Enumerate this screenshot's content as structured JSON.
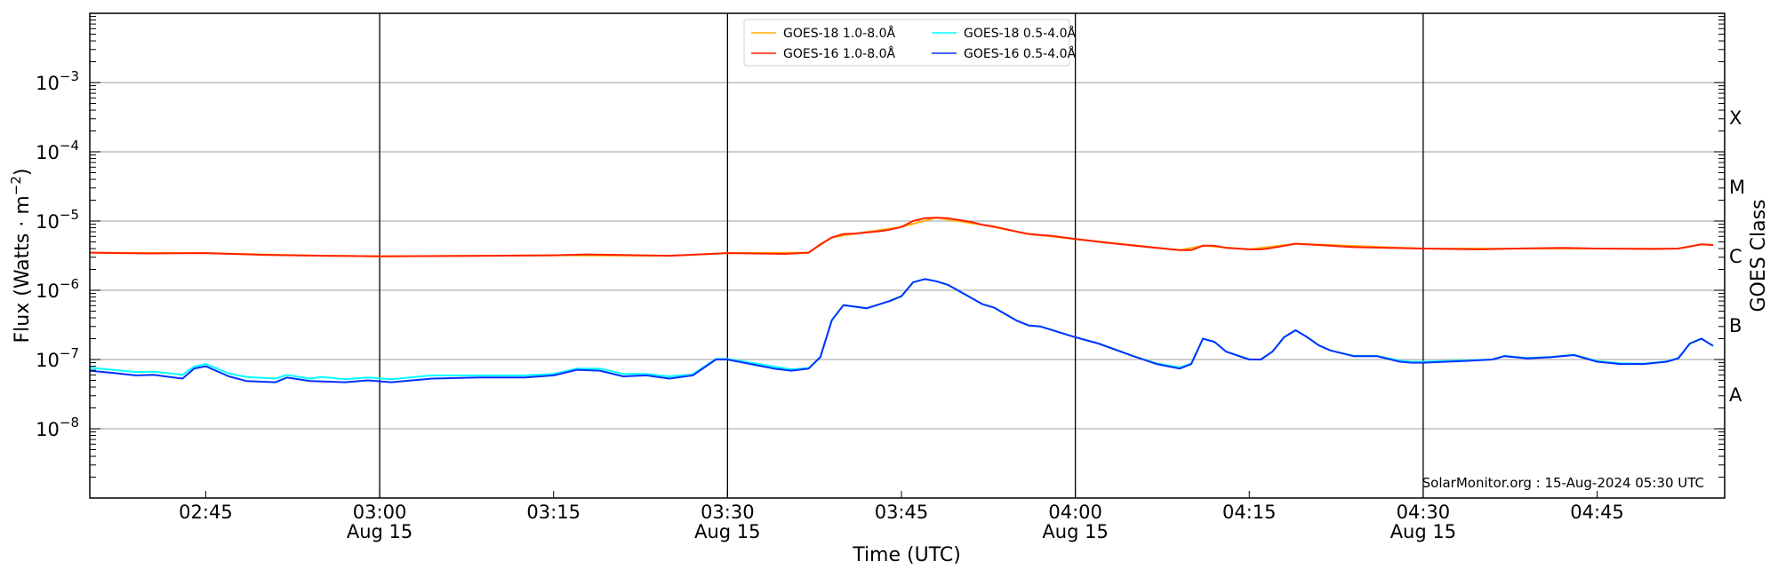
{
  "chart_data": {
    "type": "line",
    "title": "",
    "xlabel": "Time (UTC)",
    "ylabel": "Flux (Watts · m",
    "ylabel_exp": "−2",
    "ylabel_close": ")",
    "yscale": "log",
    "ylim": [
      1e-09,
      0.01
    ],
    "xlim": [
      "02:35",
      "04:56"
    ],
    "grid": "horizontal at decades",
    "legend_placement": "top-center",
    "y_ticks": [
      {
        "value": -3,
        "base": "10",
        "exp": "−3"
      },
      {
        "value": -4,
        "base": "10",
        "exp": "−4"
      },
      {
        "value": -5,
        "base": "10",
        "exp": "−5"
      },
      {
        "value": -6,
        "base": "10",
        "exp": "−6"
      },
      {
        "value": -7,
        "base": "10",
        "exp": "−7"
      },
      {
        "value": -8,
        "base": "10",
        "exp": "−8"
      }
    ],
    "x_ticks": [
      {
        "time": "02:45",
        "label": "02:45",
        "date": ""
      },
      {
        "time": "03:00",
        "label": "03:00",
        "date": "Aug 15"
      },
      {
        "time": "03:15",
        "label": "03:15",
        "date": ""
      },
      {
        "time": "03:30",
        "label": "03:30",
        "date": "Aug 15"
      },
      {
        "time": "03:45",
        "label": "03:45",
        "date": ""
      },
      {
        "time": "04:00",
        "label": "04:00",
        "date": "Aug 15"
      },
      {
        "time": "04:15",
        "label": "04:15",
        "date": ""
      },
      {
        "time": "04:30",
        "label": "04:30",
        "date": "Aug 15"
      },
      {
        "time": "04:45",
        "label": "04:45",
        "date": ""
      }
    ],
    "vertical_lines": [
      "03:00",
      "03:30",
      "04:00",
      "04:30"
    ],
    "right_axis": {
      "label": "GOES Class",
      "classes": [
        {
          "label": "X",
          "log": -3.5
        },
        {
          "label": "M",
          "log": -4.5
        },
        {
          "label": "C",
          "log": -5.5
        },
        {
          "label": "B",
          "log": -6.5
        },
        {
          "label": "A",
          "log": -7.5
        }
      ]
    },
    "annotation": "SolarMonitor.org : 15-Aug-2024 05:30 UTC",
    "series": [
      {
        "name": "GOES-18 1.0-8.0Å",
        "color": "#ffb000",
        "legend_col": 0,
        "points": [
          [
            "02:35",
            3.5e-06
          ],
          [
            "02:45",
            3.45e-06
          ],
          [
            "02:55",
            3.15e-06
          ],
          [
            "03:00",
            3.1e-06
          ],
          [
            "03:15",
            3.2e-06
          ],
          [
            "03:25",
            3.15e-06
          ],
          [
            "03:30",
            3.45e-06
          ],
          [
            "03:37",
            3.5e-06
          ],
          [
            "03:39",
            5.8e-06
          ],
          [
            "03:41",
            6.6e-06
          ],
          [
            "03:45",
            8.2e-06
          ],
          [
            "03:48",
            1.12e-05
          ],
          [
            "03:52",
            8.8e-06
          ],
          [
            "03:56",
            6.5e-06
          ],
          [
            "04:00",
            5.5e-06
          ],
          [
            "04:09",
            3.8e-06
          ],
          [
            "04:11",
            4.4e-06
          ],
          [
            "04:15",
            3.9e-06
          ],
          [
            "04:19",
            4.7e-06
          ],
          [
            "04:30",
            4e-06
          ],
          [
            "04:45",
            4e-06
          ],
          [
            "04:52",
            4e-06
          ],
          [
            "04:54",
            4.6e-06
          ],
          [
            "04:55",
            4.5e-06
          ]
        ]
      },
      {
        "name": "GOES-18 0.5-4.0Å",
        "color": "#00ffff",
        "legend_col": 1,
        "points": [
          [
            "02:35",
            7.6e-08
          ],
          [
            "02:37",
            7.1e-08
          ],
          [
            "02:39",
            6.6e-08
          ],
          [
            "02:40.5",
            6.7e-08
          ],
          [
            "02:43",
            6e-08
          ],
          [
            "02:44",
            7.9e-08
          ],
          [
            "02:45",
            8.6e-08
          ],
          [
            "02:47",
            6.3e-08
          ],
          [
            "02:48.5",
            5.6e-08
          ],
          [
            "02:51",
            5.3e-08
          ],
          [
            "02:52",
            6e-08
          ],
          [
            "02:54",
            5.3e-08
          ],
          [
            "02:55",
            5.6e-08
          ],
          [
            "02:57",
            5.2e-08
          ],
          [
            "02:59",
            5.5e-08
          ],
          [
            "03:01",
            5.2e-08
          ],
          [
            "03:04.5",
            5.9e-08
          ],
          [
            "03:08.5",
            5.9e-08
          ],
          [
            "03:12.5",
            5.9e-08
          ],
          [
            "03:15",
            6.2e-08
          ],
          [
            "03:17",
            7.4e-08
          ],
          [
            "03:19",
            7.4e-08
          ],
          [
            "03:21",
            6.2e-08
          ],
          [
            "03:23",
            6.2e-08
          ],
          [
            "03:25",
            5.7e-08
          ],
          [
            "03:27",
            6.1e-08
          ],
          [
            "03:29",
            1.02e-07
          ],
          [
            "03:30",
            1.02e-07
          ],
          [
            "03:32",
            9e-08
          ],
          [
            "03:34",
            7.9e-08
          ],
          [
            "03:35.5",
            7.2e-08
          ],
          [
            "03:37",
            7.5e-08
          ],
          [
            "03:38",
            1.08e-07
          ],
          [
            "03:39",
            3.7e-07
          ],
          [
            "03:40",
            6.1e-07
          ],
          [
            "03:42",
            5.5e-07
          ],
          [
            "03:44",
            7e-07
          ],
          [
            "03:45",
            8.2e-07
          ],
          [
            "03:46",
            1.3e-06
          ],
          [
            "03:47",
            1.45e-06
          ],
          [
            "03:48",
            1.35e-06
          ],
          [
            "03:49",
            1.2e-06
          ],
          [
            "03:52",
            6.3e-07
          ],
          [
            "03:53",
            5.6e-07
          ],
          [
            "03:55",
            3.6e-07
          ],
          [
            "03:56",
            3.1e-07
          ],
          [
            "03:57",
            3e-07
          ],
          [
            "04:00",
            2.1e-07
          ],
          [
            "04:02",
            1.7e-07
          ],
          [
            "04:05",
            1.12e-07
          ],
          [
            "04:07",
            8.8e-08
          ],
          [
            "04:09",
            7.7e-08
          ],
          [
            "04:10",
            8.7e-08
          ],
          [
            "04:11",
            2e-07
          ],
          [
            "04:12",
            1.8e-07
          ],
          [
            "04:13",
            1.3e-07
          ],
          [
            "04:15",
            1e-07
          ],
          [
            "04:16",
            1e-07
          ],
          [
            "04:17",
            1.3e-07
          ],
          [
            "04:18",
            2.1e-07
          ],
          [
            "04:19",
            2.65e-07
          ],
          [
            "04:20",
            2.1e-07
          ],
          [
            "04:21",
            1.6e-07
          ],
          [
            "04:22",
            1.35e-07
          ],
          [
            "04:24",
            1.13e-07
          ],
          [
            "04:26",
            1.13e-07
          ],
          [
            "04:28",
            9.6e-08
          ],
          [
            "04:29",
            9.3e-08
          ],
          [
            "04:30",
            9.3e-08
          ],
          [
            "04:32",
            9.5e-08
          ],
          [
            "04:34",
            9.7e-08
          ],
          [
            "04:36",
            1.01e-07
          ],
          [
            "04:37",
            1.13e-07
          ],
          [
            "04:39",
            1.05e-07
          ],
          [
            "04:41",
            1.09e-07
          ],
          [
            "04:43",
            1.17e-07
          ],
          [
            "04:45",
            9.5e-08
          ],
          [
            "04:47",
            8.8e-08
          ],
          [
            "04:49",
            8.7e-08
          ],
          [
            "04:51",
            9.4e-08
          ],
          [
            "04:52",
            1.05e-07
          ],
          [
            "04:53",
            1.7e-07
          ],
          [
            "04:54",
            2e-07
          ],
          [
            "04:55",
            1.57e-07
          ]
        ]
      },
      {
        "name": "GOES-16 1.0-8.0Å",
        "color": "#ff2000",
        "legend_col": 0,
        "points": [
          [
            "02:35",
            3.5e-06
          ],
          [
            "02:40",
            3.4e-06
          ],
          [
            "02:45",
            3.45e-06
          ],
          [
            "02:50",
            3.25e-06
          ],
          [
            "02:55",
            3.15e-06
          ],
          [
            "03:00",
            3.1e-06
          ],
          [
            "03:10",
            3.15e-06
          ],
          [
            "03:15",
            3.2e-06
          ],
          [
            "03:18",
            3.3e-06
          ],
          [
            "03:25",
            3.15e-06
          ],
          [
            "03:30",
            3.45e-06
          ],
          [
            "03:35",
            3.35e-06
          ],
          [
            "03:37",
            3.5e-06
          ],
          [
            "03:38",
            4.6e-06
          ],
          [
            "03:39",
            5.8e-06
          ],
          [
            "03:40",
            6.5e-06
          ],
          [
            "03:41",
            6.6e-06
          ],
          [
            "03:43",
            7.1e-06
          ],
          [
            "03:44",
            7.5e-06
          ],
          [
            "03:45",
            8.2e-06
          ],
          [
            "03:46",
            1e-05
          ],
          [
            "03:47",
            1.1e-05
          ],
          [
            "03:48",
            1.12e-05
          ],
          [
            "03:49",
            1.1e-05
          ],
          [
            "03:51",
            9.7e-06
          ],
          [
            "03:52",
            8.8e-06
          ],
          [
            "03:53",
            8.3e-06
          ],
          [
            "03:55",
            7e-06
          ],
          [
            "03:56",
            6.5e-06
          ],
          [
            "03:58",
            6.1e-06
          ],
          [
            "04:00",
            5.5e-06
          ],
          [
            "04:03",
            4.8e-06
          ],
          [
            "04:07",
            4.1e-06
          ],
          [
            "04:09",
            3.8e-06
          ],
          [
            "04:10",
            3.8e-06
          ],
          [
            "04:11",
            4.4e-06
          ],
          [
            "04:12",
            4.4e-06
          ],
          [
            "04:13",
            4.1e-06
          ],
          [
            "04:15",
            3.9e-06
          ],
          [
            "04:16",
            3.9e-06
          ],
          [
            "04:17",
            4.1e-06
          ],
          [
            "04:19",
            4.7e-06
          ],
          [
            "04:21",
            4.5e-06
          ],
          [
            "04:24",
            4.2e-06
          ],
          [
            "04:27",
            4.1e-06
          ],
          [
            "04:30",
            4e-06
          ],
          [
            "04:35",
            3.9e-06
          ],
          [
            "04:38",
            4e-06
          ],
          [
            "04:42",
            4.1e-06
          ],
          [
            "04:45",
            4e-06
          ],
          [
            "04:50",
            3.95e-06
          ],
          [
            "04:52",
            4e-06
          ],
          [
            "04:54",
            4.6e-06
          ],
          [
            "04:55",
            4.5e-06
          ]
        ]
      },
      {
        "name": "GOES-16 0.5-4.0Å",
        "color": "#0030ff",
        "legend_col": 1,
        "points": [
          [
            "02:35",
            6.9e-08
          ],
          [
            "02:37",
            6.4e-08
          ],
          [
            "02:39",
            5.9e-08
          ],
          [
            "02:40.5",
            6e-08
          ],
          [
            "02:43",
            5.3e-08
          ],
          [
            "02:44",
            7.4e-08
          ],
          [
            "02:45",
            8e-08
          ],
          [
            "02:47",
            5.7e-08
          ],
          [
            "02:48.5",
            4.9e-08
          ],
          [
            "02:51",
            4.7e-08
          ],
          [
            "02:52",
            5.5e-08
          ],
          [
            "02:54",
            4.9e-08
          ],
          [
            "02:57",
            4.7e-08
          ],
          [
            "02:59",
            5e-08
          ],
          [
            "03:01",
            4.7e-08
          ],
          [
            "03:04.5",
            5.3e-08
          ],
          [
            "03:08.5",
            5.5e-08
          ],
          [
            "03:12.5",
            5.5e-08
          ],
          [
            "03:15",
            5.9e-08
          ],
          [
            "03:17",
            7.1e-08
          ],
          [
            "03:19",
            6.9e-08
          ],
          [
            "03:21",
            5.7e-08
          ],
          [
            "03:23",
            5.9e-08
          ],
          [
            "03:25",
            5.3e-08
          ],
          [
            "03:27",
            5.9e-08
          ],
          [
            "03:29",
            1e-07
          ],
          [
            "03:30",
            1e-07
          ],
          [
            "03:32",
            8.6e-08
          ],
          [
            "03:34",
            7.4e-08
          ],
          [
            "03:35.5",
            6.9e-08
          ],
          [
            "03:37",
            7.4e-08
          ],
          [
            "03:38",
            1.08e-07
          ],
          [
            "03:39",
            3.7e-07
          ],
          [
            "03:40",
            6.1e-07
          ],
          [
            "03:42",
            5.5e-07
          ],
          [
            "03:44",
            7e-07
          ],
          [
            "03:45",
            8.2e-07
          ],
          [
            "03:46",
            1.3e-06
          ],
          [
            "03:47",
            1.45e-06
          ],
          [
            "03:48",
            1.35e-06
          ],
          [
            "03:49",
            1.2e-06
          ],
          [
            "03:52",
            6.3e-07
          ],
          [
            "03:53",
            5.6e-07
          ],
          [
            "03:55",
            3.6e-07
          ],
          [
            "03:56",
            3.1e-07
          ],
          [
            "03:57",
            3e-07
          ],
          [
            "04:00",
            2.1e-07
          ],
          [
            "04:02",
            1.7e-07
          ],
          [
            "04:05",
            1.12e-07
          ],
          [
            "04:07",
            8.6e-08
          ],
          [
            "04:09",
            7.4e-08
          ],
          [
            "04:10",
            8.6e-08
          ],
          [
            "04:11",
            2e-07
          ],
          [
            "04:12",
            1.8e-07
          ],
          [
            "04:13",
            1.3e-07
          ],
          [
            "04:15",
            1e-07
          ],
          [
            "04:16",
            1e-07
          ],
          [
            "04:17",
            1.3e-07
          ],
          [
            "04:18",
            2.1e-07
          ],
          [
            "04:19",
            2.65e-07
          ],
          [
            "04:20",
            2.1e-07
          ],
          [
            "04:21",
            1.6e-07
          ],
          [
            "04:22",
            1.35e-07
          ],
          [
            "04:24",
            1.12e-07
          ],
          [
            "04:26",
            1.12e-07
          ],
          [
            "04:28",
            9.3e-08
          ],
          [
            "04:29",
            9e-08
          ],
          [
            "04:30",
            9e-08
          ],
          [
            "04:32",
            9.3e-08
          ],
          [
            "04:34",
            9.6e-08
          ],
          [
            "04:36",
            1e-07
          ],
          [
            "04:37",
            1.12e-07
          ],
          [
            "04:39",
            1.04e-07
          ],
          [
            "04:41",
            1.08e-07
          ],
          [
            "04:43",
            1.16e-07
          ],
          [
            "04:45",
            9.3e-08
          ],
          [
            "04:47",
            8.6e-08
          ],
          [
            "04:49",
            8.6e-08
          ],
          [
            "04:51",
            9.3e-08
          ],
          [
            "04:52",
            1.04e-07
          ],
          [
            "04:53",
            1.7e-07
          ],
          [
            "04:54",
            2e-07
          ],
          [
            "04:55",
            1.57e-07
          ]
        ]
      }
    ],
    "legend_order": [
      0,
      1,
      2,
      3
    ]
  }
}
